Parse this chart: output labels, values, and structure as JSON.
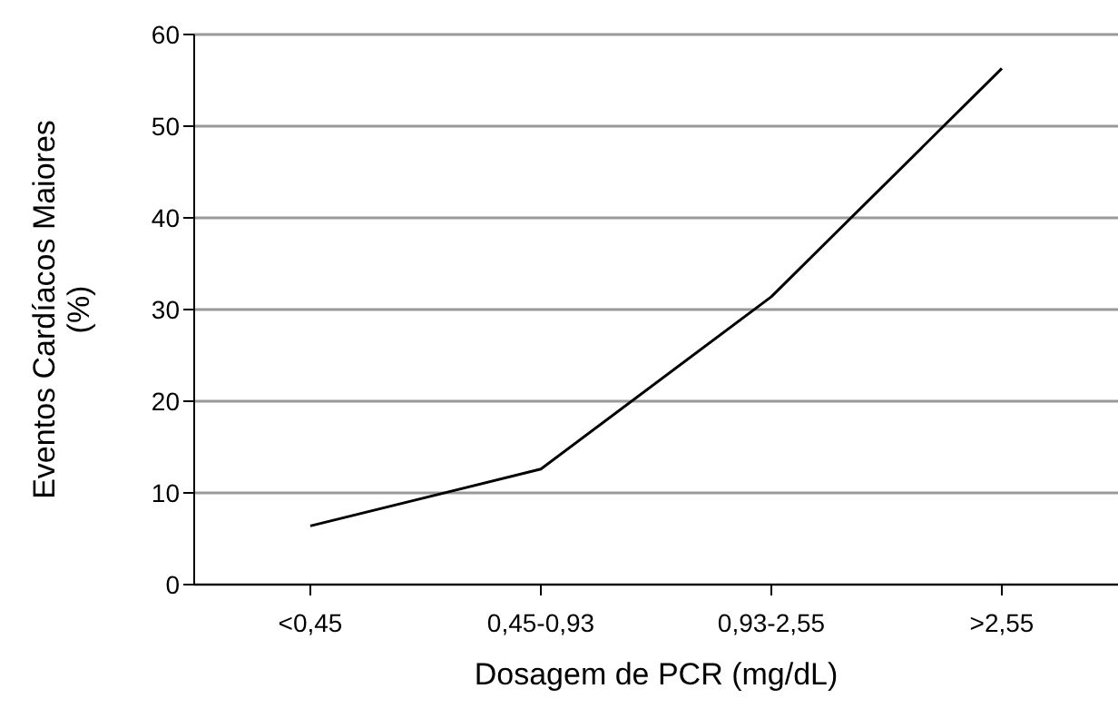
{
  "chart_data": {
    "type": "line",
    "xlabel": "Dosagem de PCR (mg/dL)",
    "ylabel": "Eventos Cardíacos Maiores (%)",
    "categories": [
      "<0,45",
      "0,45-0,93",
      "0,93-2,55",
      ">2,55"
    ],
    "series": [
      {
        "color": "#000000",
        "values": [
          6.4,
          12.6,
          31.4,
          56.3
        ]
      }
    ],
    "ylim": [
      0,
      60
    ],
    "yticks": [
      0,
      10,
      20,
      30,
      40,
      50,
      60
    ],
    "grid": "y",
    "legend": false,
    "marker": "none",
    "line_style": "solid"
  }
}
